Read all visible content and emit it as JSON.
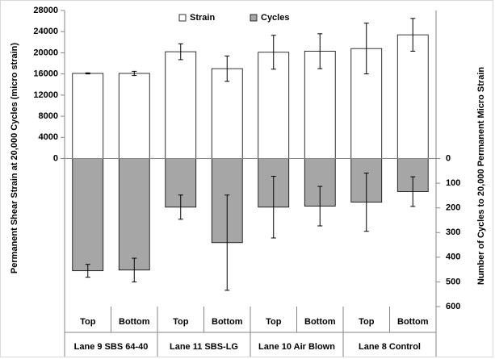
{
  "chart_data": {
    "type": "bar",
    "ylabel": "Permanent Shear Strain at 20,000 Cycles (micro strain)",
    "y2label": "Number of Cycles to 20,000 Permanent Micro Strain",
    "categories": [
      "Top",
      "Bottom",
      "Top",
      "Bottom",
      "Top",
      "Bottom",
      "Top",
      "Bottom"
    ],
    "groups": [
      "Lane 9 SBS 64-40",
      "Lane 11 SBS-LG",
      "Lane 10 Air Blown",
      "Lane 8 Control"
    ],
    "series": [
      {
        "name": "Strain",
        "color": "#ffffff",
        "axis": "y",
        "values": [
          16100,
          16100,
          20200,
          17000,
          20100,
          20300,
          20800,
          23400
        ],
        "errors": [
          100,
          400,
          1500,
          2400,
          3200,
          3300,
          4800,
          3100
        ]
      },
      {
        "name": "Cycles",
        "color": "#a6a6a6",
        "axis": "y2",
        "values": [
          455,
          452,
          197,
          341,
          197,
          193,
          177,
          134
        ],
        "errors": [
          26,
          48,
          49,
          193,
          125,
          80,
          118,
          60
        ]
      }
    ],
    "ylim": [
      -28000,
      28000
    ],
    "yticks": [
      0,
      4000,
      8000,
      12000,
      16000,
      20000,
      24000,
      28000
    ],
    "y2lim": [
      600,
      -600
    ],
    "y2ticks": [
      0,
      100,
      200,
      300,
      400,
      500,
      600
    ],
    "legend": "top"
  }
}
